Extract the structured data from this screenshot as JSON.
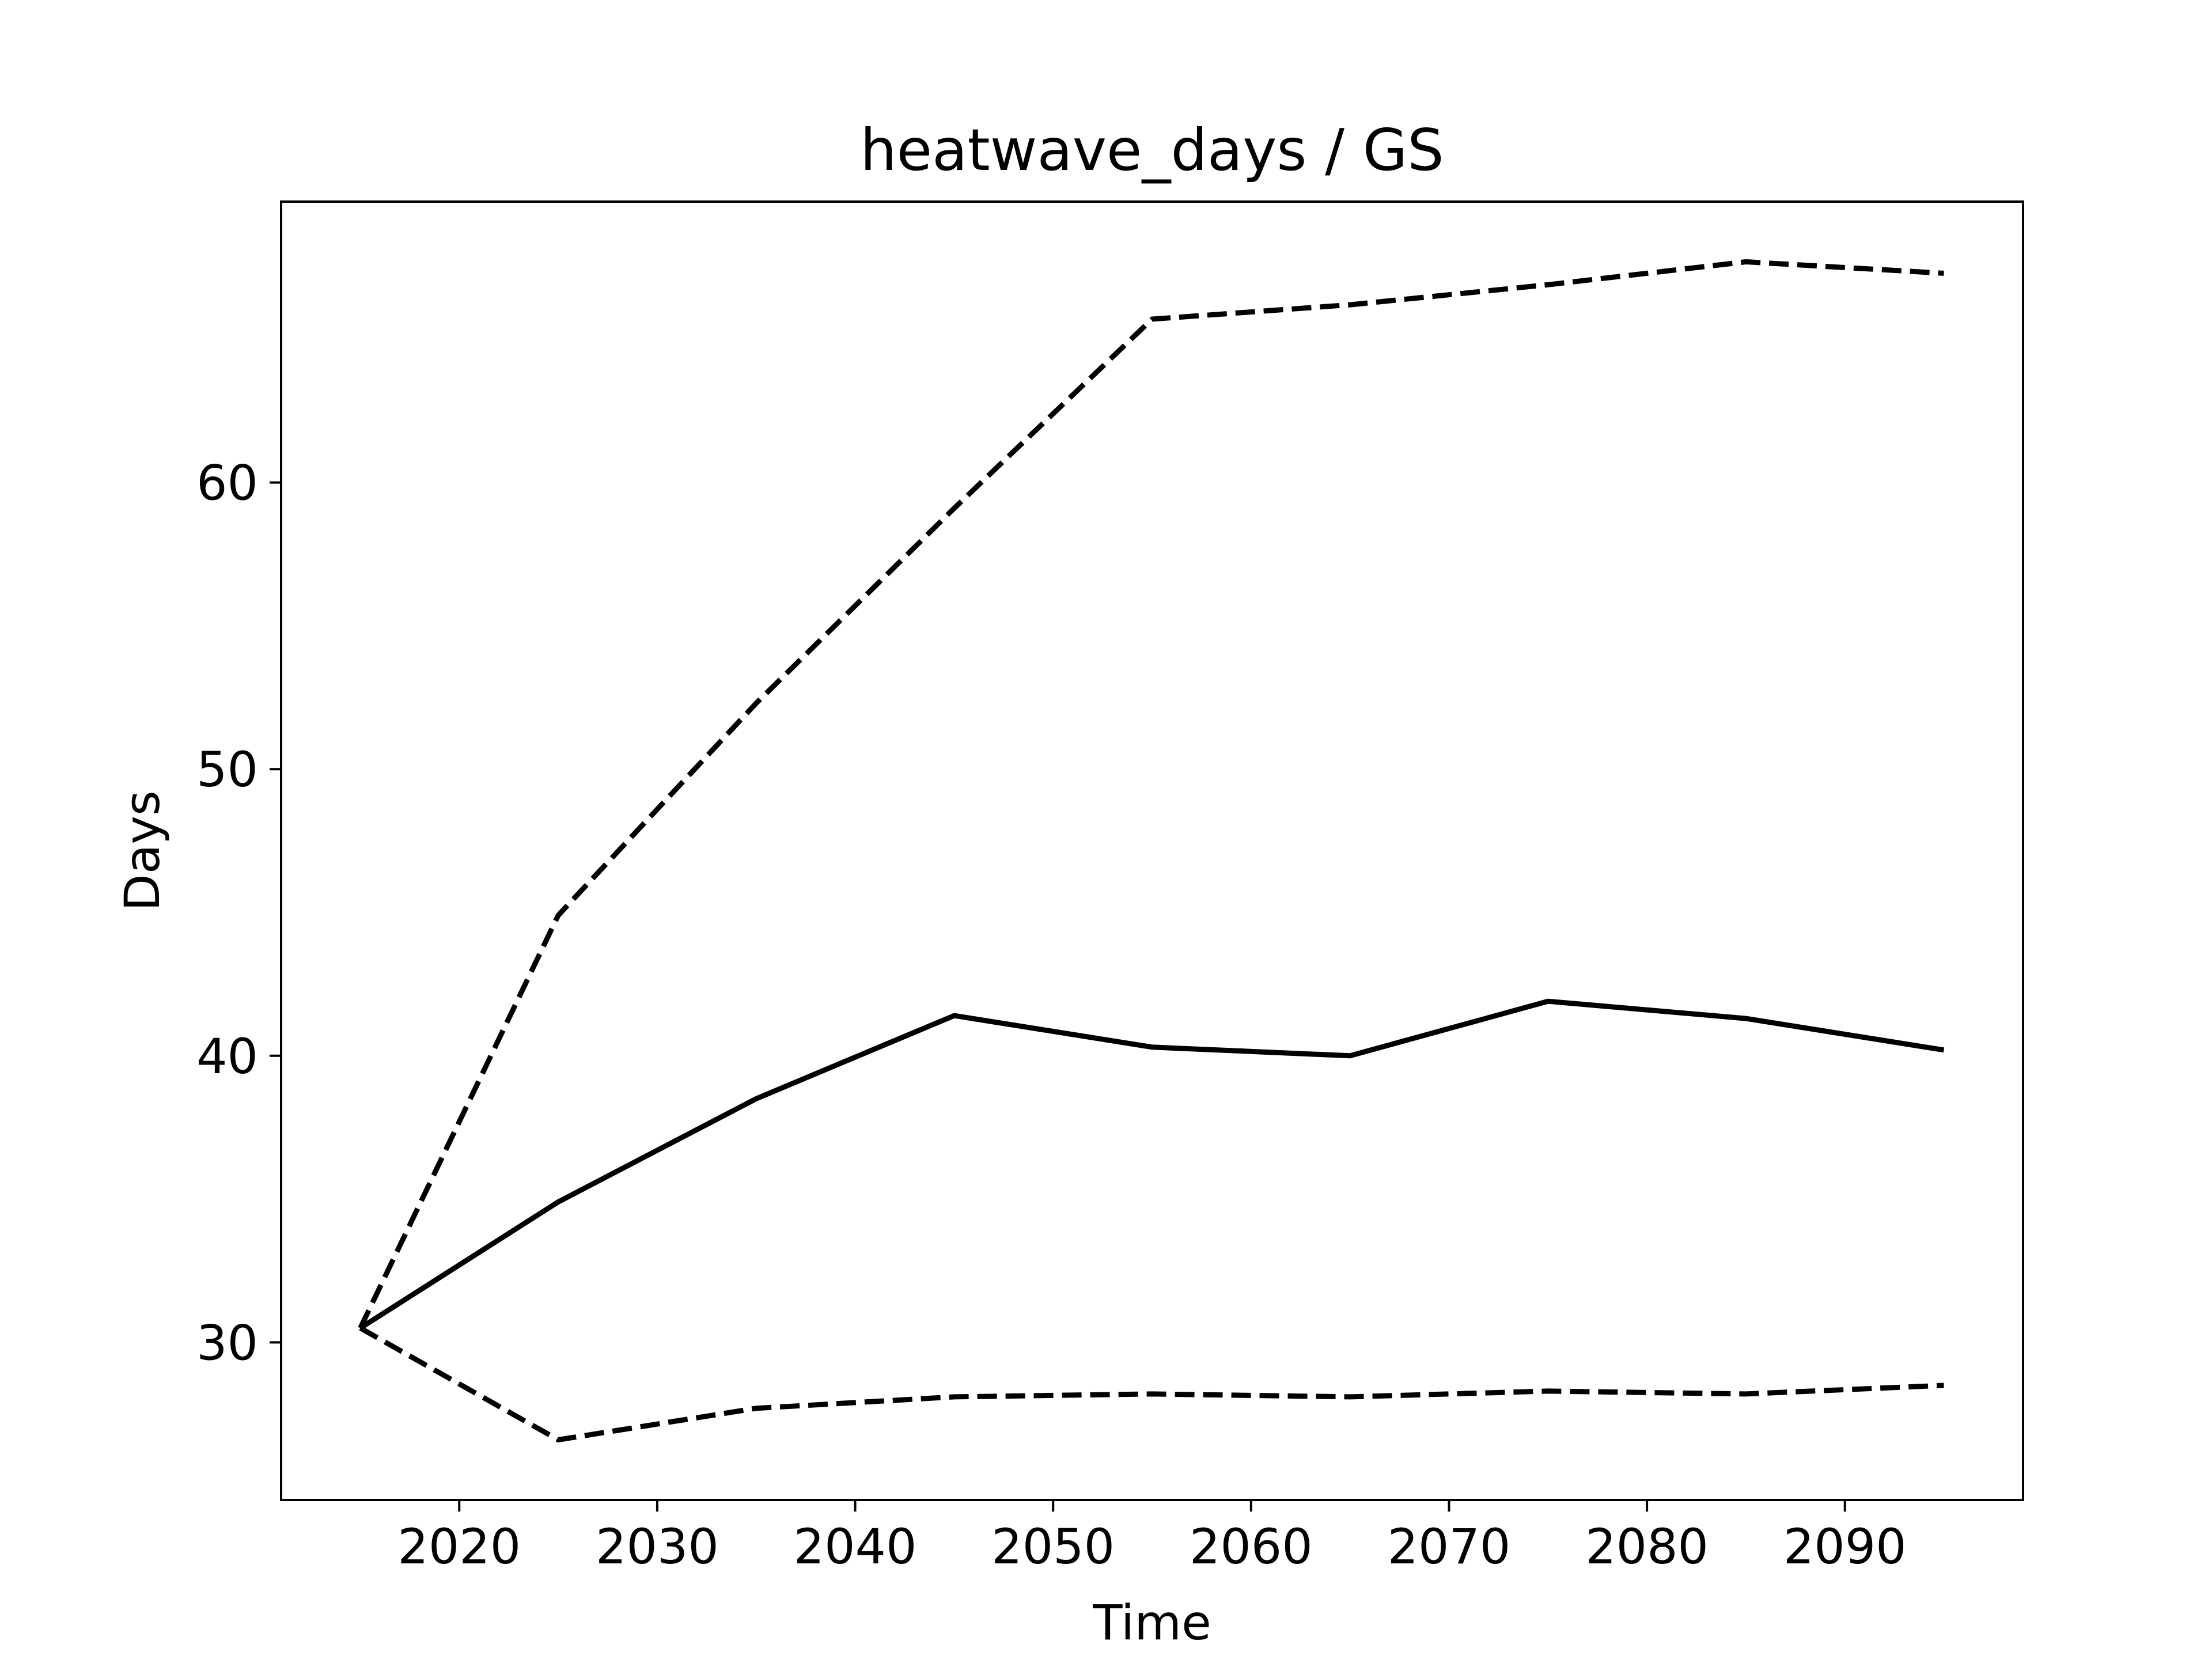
{
  "chart_data": {
    "type": "line",
    "title": "heatwave_days / GS",
    "xlabel": "Time",
    "ylabel": "Days",
    "xlim": [
      2011,
      2099
    ],
    "ylim": [
      24.5,
      69.8
    ],
    "xticks": [
      2020,
      2030,
      2040,
      2050,
      2060,
      2070,
      2080,
      2090
    ],
    "yticks": [
      30,
      40,
      50,
      60
    ],
    "grid": false,
    "legend": "none",
    "x": [
      2015,
      2025,
      2035,
      2045,
      2055,
      2065,
      2075,
      2085,
      2095
    ],
    "series": [
      {
        "style": "dashed",
        "color": "#000000",
        "values": [
          30.5,
          44.9,
          52.3,
          59.1,
          65.7,
          66.2,
          66.9,
          67.7,
          67.3
        ]
      },
      {
        "style": "solid",
        "color": "#000000",
        "values": [
          30.5,
          34.9,
          38.5,
          41.4,
          40.3,
          40.0,
          41.9,
          41.3,
          40.2
        ]
      },
      {
        "style": "dashed",
        "color": "#000000",
        "values": [
          30.5,
          26.6,
          27.7,
          28.1,
          28.2,
          28.1,
          28.3,
          28.2,
          28.5
        ]
      }
    ]
  }
}
